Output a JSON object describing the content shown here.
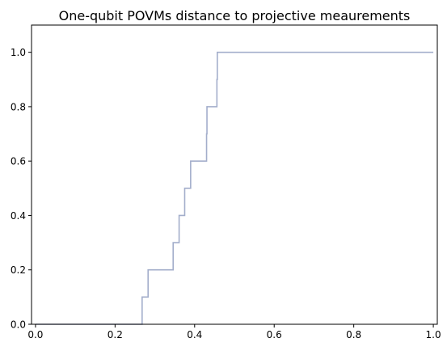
{
  "chart_data": {
    "type": "line",
    "title": "One-qubit POVMs distance to projective meaurements",
    "xlabel": "",
    "ylabel": "",
    "xlim": [
      -0.01,
      1.01
    ],
    "ylim": [
      0.0,
      1.1
    ],
    "grid": false,
    "legend": "none",
    "step": "post",
    "x_ticks": [
      0.0,
      0.2,
      0.4,
      0.6,
      0.8,
      1.0
    ],
    "x_tick_labels": [
      "0.0",
      "0.2",
      "0.4",
      "0.6",
      "0.8",
      "1.0"
    ],
    "y_ticks": [
      0.0,
      0.2,
      0.4,
      0.6,
      0.8,
      1.0
    ],
    "y_tick_labels": [
      "0.0",
      "0.2",
      "0.4",
      "0.6",
      "0.8",
      "1.0"
    ],
    "series": [
      {
        "color": "#a3aecb",
        "x": [
          0.0,
          0.268,
          0.283,
          0.346,
          0.361,
          0.375,
          0.39,
          0.43,
          0.431,
          0.446,
          0.456,
          0.457,
          1.0
        ],
        "y": [
          0.0,
          0.1,
          0.2,
          0.3,
          0.4,
          0.5,
          0.6,
          0.7,
          0.8,
          0.8,
          0.9,
          1.0,
          1.0
        ]
      }
    ]
  }
}
